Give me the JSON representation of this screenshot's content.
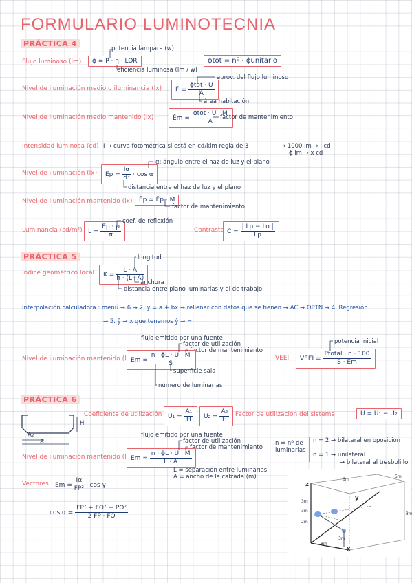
{
  "title": "FORMULARIO LUMINOTECNIA",
  "p4": {
    "heading": "PRÁCTICA 4",
    "flujo": {
      "label": "Flujo luminoso (lm)",
      "formula": "ϕ = P · η · LOR",
      "ann_top": "potencia lámpara (w)",
      "ann_bot": "eficiencia luminosa (lm / w)"
    },
    "phi_tot": "ϕtot = nº · ϕunitario",
    "em_medio": {
      "label": "Nivel de iluminación medio o iluminancia (lx)",
      "lhs": "Ē =",
      "num": "ϕtot · U",
      "den": "A",
      "ann_top": "aprov. del flujo luminoso",
      "ann_bot": "área habitación"
    },
    "em_mant": {
      "label": "Nivel de iluminación medio mantenido (lx)",
      "lhs": "Ēm =",
      "num": "ϕtot · U · M",
      "den": "A",
      "ann": "factor de mantenimiento"
    },
    "intensidad": {
      "label": "Intensidad luminosa (cd)",
      "text": "I → curva fotométrica si está en cd/klm regla de 3",
      "r1": "→ 1000 lm → I cd",
      "r2": "ϕ lm → x cd"
    },
    "ep": {
      "label": "Nivel de iluminación (lx)",
      "lhs": "Ep =",
      "num": "Iα",
      "den": "d²",
      "tail": "· cos α",
      "ann_top": "α: ángulo entre el haz de luz y el plano",
      "ann_bot": "distancia entre el haz de luz y el plano"
    },
    "epm": {
      "label": "Nivel de iluminación mantenido (lx)",
      "formula": "Ēp = Ēp · M",
      "ann": "factor de mantenimiento"
    },
    "lum": {
      "label": "Luminancia (cd/m²)",
      "lhs": "L =",
      "num": "Ep · ρ",
      "den": "π",
      "ann": "coef. de reflexión"
    },
    "contraste": {
      "label": "Contraste",
      "lhs": "C =",
      "num": "| Lp − Lo |",
      "den": "Lp"
    }
  },
  "p5": {
    "heading": "PRÁCTICA 5",
    "k": {
      "label": "Índice geométrico local",
      "lhs": "K =",
      "num": "L · A",
      "den": "h · (L+A)",
      "ann_top": "longitud",
      "ann_mid": "anchura",
      "ann_bot": "distancia entre plano luminarias y el de trabajo"
    },
    "interp1": "Interpolación calculadora : menú → 6 → 2. y = a + bx → rellenar con datos que se tienen → AC → OPTN → 4. Regresión",
    "interp2": "→ 5. ŷ → x que tenemos ŷ → =",
    "em": {
      "label": "Nivel de iluminación mantenido (lx)",
      "lhs": "Em =",
      "num": "n · ϕL · U · M",
      "den": "S",
      "a1": "flujo emitido por una fuente",
      "a2": "factor de utilización",
      "a3": "factor de mantenimiento",
      "a4": "superficie sala",
      "a5": "número de luminarias"
    },
    "veei": {
      "label": "VEEI",
      "lhs": "VEEI =",
      "num": "Ptotal · n · 100",
      "den": "S · Em",
      "ann": "potencia inicial"
    }
  },
  "p6": {
    "heading": "PRÁCTICA 6",
    "coef": {
      "label": "Coeficiente de utilización",
      "u1_lhs": "U₁ =",
      "u1_num": "A₁",
      "u1_den": "H",
      "u2_lhs": "U₂ =",
      "u2_num": "A₂",
      "u2_den": "H"
    },
    "sys": {
      "label": "Factor de utilización del sistema",
      "formula": "U = U₁ − U₂"
    },
    "em": {
      "label": "Nivel de iluminación mantenido (lx)",
      "lhs": "Em =",
      "num": "n · ϕL · U · M",
      "den": "L · A",
      "a1": "flujo emitido por una fuente",
      "a2": "factor de utilización",
      "a3": "factor de mantenimiento",
      "a4": "L = separación entre luminarias",
      "a5": "A = ancho de la calzada (m)"
    },
    "n_label": "n = nº de luminarias",
    "n2": "n = 2 → bilateral en oposición",
    "n1": "n = 1 → unilateral",
    "n1b": "→ bilateral al tresbolillo",
    "vect": {
      "label": "Vectores",
      "lhs": "Em =",
      "num": "Iα",
      "den": "FP²",
      "tail": "· cos γ"
    },
    "cos": {
      "lhs": "cos α =",
      "num": "FP² + FO² − PO²",
      "den": "2 FP · FO"
    },
    "profile": {
      "a2": "A₂",
      "a1": "A₁",
      "h": "H"
    },
    "diagram": {
      "z": "z",
      "y": "y",
      "x": "x",
      "labels": [
        "3m",
        "3m",
        "2m",
        "3m",
        "3m",
        "8m",
        "5m",
        "6m"
      ]
    }
  }
}
